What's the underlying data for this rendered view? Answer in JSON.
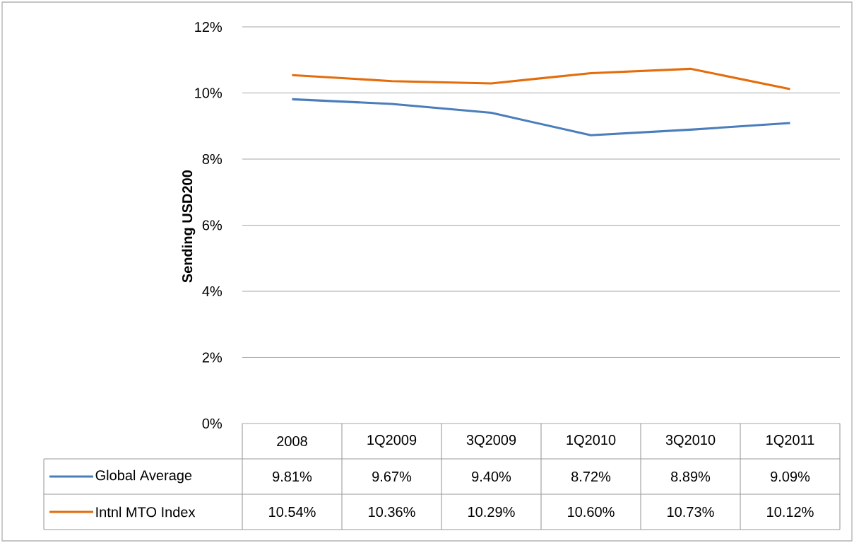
{
  "chart_data": {
    "type": "line",
    "ylabel": "Sending USD200",
    "categories": [
      "2008",
      "1Q2009",
      "3Q2009",
      "1Q2010",
      "3Q2010",
      "1Q2011"
    ],
    "series": [
      {
        "name": "Global Average",
        "color": "#4a7ebb",
        "values": [
          9.81,
          9.67,
          9.4,
          8.72,
          8.89,
          9.09
        ],
        "value_labels": [
          "9.81%",
          "9.67%",
          "9.40%",
          "8.72%",
          "8.89%",
          "9.09%"
        ]
      },
      {
        "name": "Intnl MTO Index",
        "color": "#e46c0a",
        "values": [
          10.54,
          10.36,
          10.29,
          10.6,
          10.73,
          10.12
        ],
        "value_labels": [
          "10.54%",
          "10.36%",
          "10.29%",
          "10.60%",
          "10.73%",
          "10.12%"
        ]
      }
    ],
    "ylim": [
      0,
      12
    ],
    "yticks": [
      {
        "value": 0,
        "label": "0%"
      },
      {
        "value": 2,
        "label": "2%"
      },
      {
        "value": 4,
        "label": "4%"
      },
      {
        "value": 6,
        "label": "6%"
      },
      {
        "value": 8,
        "label": "8%"
      },
      {
        "value": 10,
        "label": "10%"
      },
      {
        "value": 12,
        "label": "12%"
      }
    ],
    "grid": "y",
    "legend": "bottom",
    "marker": "none",
    "line_style": "solid"
  }
}
